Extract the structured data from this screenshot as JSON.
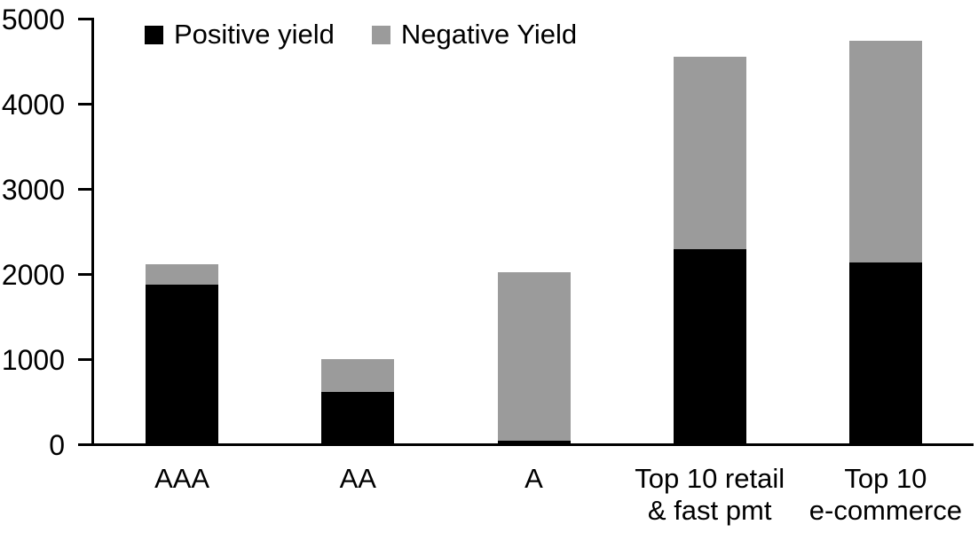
{
  "chart_data": {
    "type": "bar",
    "stacked": true,
    "title": "",
    "xlabel": "",
    "ylabel": "",
    "categories": [
      "AAA",
      "AA",
      "A",
      "Top 10 retail\n& fast pmt",
      "Top 10\ne-commerce"
    ],
    "series": [
      {
        "name": "Positive yield",
        "color": "#000000",
        "values": [
          1890,
          620,
          50,
          2300,
          2150
        ]
      },
      {
        "name": "Negative Yield",
        "color": "#9b9b9b",
        "values": [
          230,
          390,
          1980,
          2260,
          2600
        ]
      }
    ],
    "totals": [
      2120,
      1010,
      2030,
      4560,
      4750
    ],
    "ylim": [
      0,
      5000
    ],
    "ytick_interval": 1000,
    "y_tick_labels": [
      "0",
      "1000",
      "2000",
      "3000",
      "4000",
      "5000"
    ],
    "legend_position": "top-left-inside",
    "grid": false,
    "axis_color": "#000000",
    "background_color": "#ffffff"
  }
}
